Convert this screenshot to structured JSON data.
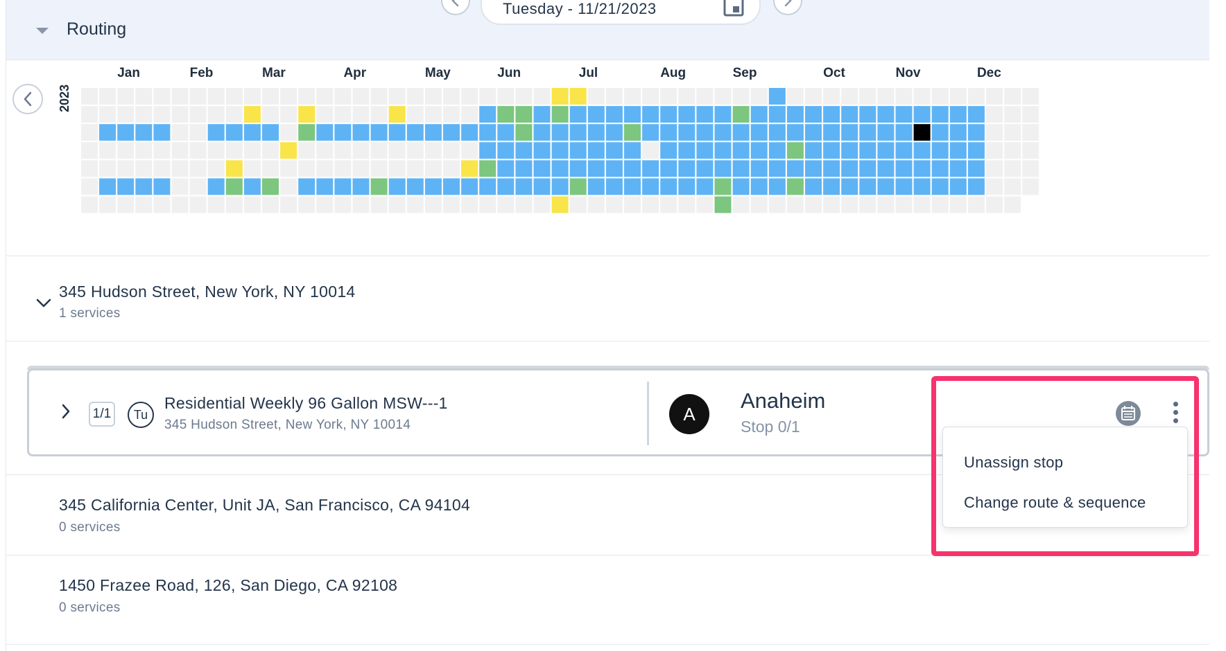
{
  "header": {
    "title": "Routing",
    "date_label": "Tuesday - 11/21/2023"
  },
  "heatmap": {
    "year": "2023",
    "months": [
      "Jan",
      "Feb",
      "Mar",
      "Apr",
      "May",
      "Jun",
      "Jul",
      "Aug",
      "Sep",
      "Oct",
      "Nov",
      "Dec"
    ],
    "colors": {
      "empty": "#f0f0f0",
      "blue": "#5eb3f5",
      "green": "#7cc67f",
      "yellow": "#f9e44a",
      "black": "#000000"
    }
  },
  "locations": [
    {
      "address": "345 Hudson Street, New York, NY 10014",
      "services": "1 services"
    },
    {
      "address": "345 California Center, Unit JA, San Francisco, CA 94104",
      "services": "0 services"
    },
    {
      "address": "1450 Frazee Road, 126, San Diego, CA 92108",
      "services": "0 services"
    }
  ],
  "service_card": {
    "count_badge": "1/1",
    "day_badge": "Tu",
    "title": "Residential Weekly 96 Gallon MSW---1",
    "address": "345 Hudson Street, New York, NY 10014",
    "avatar_letter": "A",
    "route_name": "Anaheim",
    "stop_label": "Stop 0/1"
  },
  "menu": {
    "items": [
      "Unassign stop",
      "Change route & sequence"
    ]
  }
}
